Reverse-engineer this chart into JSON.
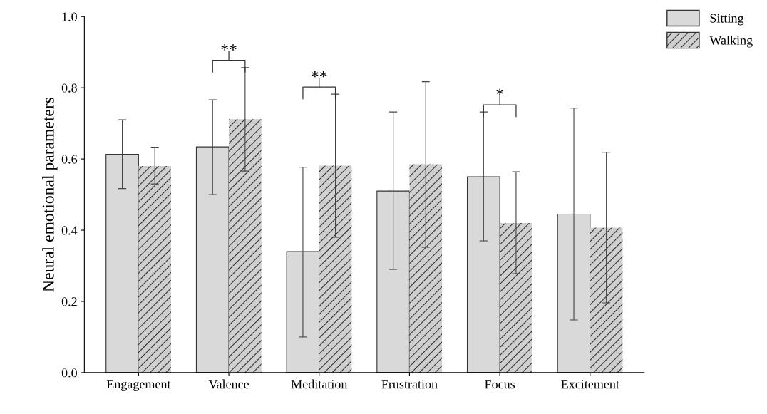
{
  "chart_data": {
    "type": "bar",
    "ylabel": "Neural emotional parameters",
    "categories": [
      "Engagement",
      "Valence",
      "Meditation",
      "Frustration",
      "Focus",
      "Excitement"
    ],
    "series": [
      {
        "name": "Sitting",
        "color": "#d9d9d9",
        "values": [
          0.613,
          0.634,
          0.34,
          0.51,
          0.55,
          0.445
        ],
        "errors": [
          [
            0.517,
            0.71
          ],
          [
            0.5,
            0.766
          ],
          [
            0.1,
            0.577
          ],
          [
            0.29,
            0.732
          ],
          [
            0.37,
            0.732
          ],
          [
            0.148,
            0.743
          ]
        ]
      },
      {
        "name": "Walking",
        "color": "#cfcfcf",
        "values": [
          0.58,
          0.712,
          0.581,
          0.585,
          0.42,
          0.407
        ],
        "errors": [
          [
            0.53,
            0.633
          ],
          [
            0.566,
            0.857
          ],
          [
            0.38,
            0.782
          ],
          [
            0.352,
            0.817
          ],
          [
            0.278,
            0.564
          ],
          [
            0.196,
            0.619
          ]
        ]
      }
    ],
    "ylim": [
      0,
      1.0
    ],
    "yticks": [
      {
        "value": 0,
        "label": "0.0"
      },
      {
        "value": 0.2,
        "label": "0.2"
      },
      {
        "value": 0.4,
        "label": "0.4"
      },
      {
        "value": 0.6,
        "label": "0.6"
      },
      {
        "value": 0.8,
        "label": "0.8"
      },
      {
        "value": 1.0,
        "label": "1.0"
      }
    ],
    "annotations": [
      "**",
      "**",
      "*"
    ],
    "grid": false,
    "legend": "top right"
  }
}
